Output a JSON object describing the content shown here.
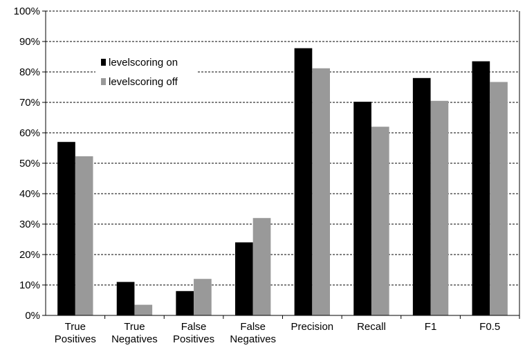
{
  "chart_data": {
    "type": "bar",
    "categories": [
      [
        "True",
        "Positives"
      ],
      [
        "True",
        "Negatives"
      ],
      [
        "False",
        "Positives"
      ],
      [
        "False",
        "Negatives"
      ],
      [
        "Precision"
      ],
      [
        "Recall"
      ],
      [
        "F1"
      ],
      [
        "F0.5"
      ]
    ],
    "series": [
      {
        "name": "levelscoring on",
        "color": "#000000",
        "values": [
          57,
          11,
          8,
          24,
          87.8,
          70.2,
          78,
          83.5
        ]
      },
      {
        "name": "levelscoring off",
        "color": "#999999",
        "values": [
          52.3,
          3.5,
          12,
          32,
          81.2,
          62,
          70.5,
          76.7
        ]
      }
    ],
    "ylim": [
      0,
      100
    ],
    "yticks": [
      "0%",
      "10%",
      "20%",
      "30%",
      "40%",
      "50%",
      "60%",
      "70%",
      "80%",
      "90%",
      "100%"
    ],
    "grid": "dashed horizontal",
    "legend": "upper-left inside plot",
    "title": "",
    "xlabel": "",
    "ylabel": ""
  }
}
